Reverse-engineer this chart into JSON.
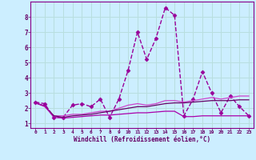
{
  "title": "",
  "xlabel": "Windchill (Refroidissement éolien,°C)",
  "background_color": "#cceeff",
  "grid_color": "#aadddd",
  "xlim": [
    -0.5,
    23.5
  ],
  "ylim": [
    0.7,
    9.0
  ],
  "xticks": [
    0,
    1,
    2,
    3,
    4,
    5,
    6,
    7,
    8,
    9,
    10,
    11,
    12,
    13,
    14,
    15,
    16,
    17,
    18,
    19,
    20,
    21,
    22,
    23
  ],
  "yticks": [
    1,
    2,
    3,
    4,
    5,
    6,
    7,
    8
  ],
  "series": [
    {
      "x": [
        0,
        1,
        2,
        3,
        4,
        5,
        6,
        7,
        8,
        9,
        10,
        11,
        12,
        13,
        14,
        15,
        16,
        17,
        18,
        19,
        20,
        21,
        22,
        23
      ],
      "y": [
        2.4,
        2.3,
        1.4,
        1.4,
        2.2,
        2.3,
        2.1,
        2.6,
        1.4,
        2.6,
        4.5,
        7.0,
        5.2,
        6.6,
        8.6,
        8.1,
        1.5,
        2.6,
        4.4,
        3.0,
        1.7,
        2.8,
        2.1,
        1.5
      ],
      "marker": "D",
      "markersize": 2.5,
      "linewidth": 1.0,
      "color": "#990099",
      "linestyle": "--"
    },
    {
      "x": [
        0,
        1,
        2,
        3,
        4,
        5,
        6,
        7,
        8,
        9,
        10,
        11,
        12,
        13,
        14,
        15,
        16,
        17,
        18,
        19,
        20,
        21,
        22,
        23
      ],
      "y": [
        2.35,
        2.1,
        1.5,
        1.5,
        1.6,
        1.6,
        1.7,
        1.8,
        1.8,
        2.0,
        2.2,
        2.3,
        2.2,
        2.3,
        2.5,
        2.5,
        2.4,
        2.5,
        2.6,
        2.7,
        2.6,
        2.7,
        2.8,
        2.8
      ],
      "marker": null,
      "markersize": 0,
      "linewidth": 0.9,
      "color": "#cc44cc",
      "linestyle": "-"
    },
    {
      "x": [
        0,
        1,
        2,
        3,
        4,
        5,
        6,
        7,
        8,
        9,
        10,
        11,
        12,
        13,
        14,
        15,
        16,
        17,
        18,
        19,
        20,
        21,
        22,
        23
      ],
      "y": [
        2.35,
        2.15,
        1.5,
        1.4,
        1.5,
        1.55,
        1.6,
        1.7,
        1.8,
        1.9,
        2.0,
        2.1,
        2.1,
        2.2,
        2.3,
        2.35,
        2.35,
        2.4,
        2.45,
        2.5,
        2.5,
        2.5,
        2.55,
        2.55
      ],
      "marker": null,
      "markersize": 0,
      "linewidth": 0.9,
      "color": "#660066",
      "linestyle": "-"
    },
    {
      "x": [
        0,
        1,
        2,
        3,
        4,
        5,
        6,
        7,
        8,
        9,
        10,
        11,
        12,
        13,
        14,
        15,
        16,
        17,
        18,
        19,
        20,
        21,
        22,
        23
      ],
      "y": [
        2.35,
        2.15,
        1.4,
        1.35,
        1.4,
        1.45,
        1.5,
        1.55,
        1.55,
        1.6,
        1.65,
        1.7,
        1.7,
        1.75,
        1.8,
        1.8,
        1.45,
        1.45,
        1.5,
        1.5,
        1.5,
        1.5,
        1.5,
        1.5
      ],
      "marker": null,
      "markersize": 0,
      "linewidth": 0.9,
      "color": "#aa00aa",
      "linestyle": "-"
    }
  ]
}
